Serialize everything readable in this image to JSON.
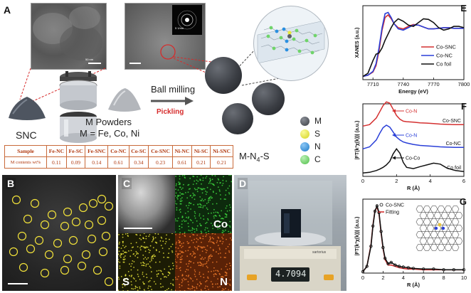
{
  "panel_a": {
    "label": "A",
    "snc_label": "SNC",
    "powders_line1": "M Powders",
    "powders_line2": "M = Fe, Co, Ni",
    "ball_milling": "Ball milling",
    "pickling": "Pickling",
    "product_label": "M-N",
    "product_sub": "4",
    "product_suffix": "-S",
    "scale_left": "50 nm",
    "scale_mid": "5 nm",
    "scale_inset": "5 1/nm",
    "legend": [
      {
        "symbol": "M",
        "color": "#5a5e66"
      },
      {
        "symbol": "S",
        "color": "#e8e83a"
      },
      {
        "symbol": "N",
        "color": "#2a8fe0"
      },
      {
        "symbol": "C",
        "color": "#6fd46a"
      }
    ],
    "table": {
      "header": [
        "Sample",
        "Fe-NC",
        "Fe-SC",
        "Fe-SNC",
        "Co-NC",
        "Co-SC",
        "Co-SNC",
        "Ni-NC",
        "Ni-SC",
        "Ni-SNC"
      ],
      "row_label": "M contents wt%",
      "values": [
        "0.11",
        "0.09",
        "0.14",
        "0.61",
        "0.34",
        "0.23",
        "0.61",
        "0.21",
        "0.21"
      ]
    }
  },
  "panel_b": {
    "label": "B"
  },
  "panel_c": {
    "label": "C",
    "maps": [
      "Co",
      "S",
      "N"
    ]
  },
  "panel_d": {
    "label": "D",
    "scale_brand": "sartorius",
    "display": "4.7094"
  },
  "panel_e": {
    "label": "E",
    "ylabel": "XANES (a.u.)",
    "xlabel": "Energy (eV)",
    "legend": [
      "Co-SNC",
      "Co-NC",
      "Co foil"
    ]
  },
  "panel_f": {
    "label": "F",
    "ylabel": "|FT(k³χ(k))| (a.u.)",
    "xlabel": "R (Å)",
    "annotations": [
      "Co-N",
      "Co-N",
      "Co-Co"
    ],
    "series_labels": [
      "Co-SNC",
      "Co-NC",
      "Co foil"
    ]
  },
  "panel_g": {
    "label": "G",
    "ylabel": "|FT(k³χ(k))| (a.u.)",
    "xlabel": "R (Å)",
    "legend": [
      "Co-SNC",
      "Fitting"
    ]
  },
  "chart_data": [
    {
      "type": "line",
      "panel": "E",
      "xlabel": "Energy (eV)",
      "ylabel": "XANES (a.u.)",
      "xlim": [
        7700,
        7800
      ],
      "xticks": [
        7710,
        7740,
        7770,
        7800
      ],
      "x": [
        7700,
        7705,
        7710,
        7713,
        7716,
        7719,
        7722,
        7725,
        7728,
        7731,
        7735,
        7740,
        7745,
        7750,
        7755,
        7760,
        7765,
        7770,
        7775,
        7780,
        7785,
        7790,
        7795,
        7800
      ],
      "series": [
        {
          "name": "Co-SNC",
          "color": "#d43030",
          "values": [
            0.05,
            0.07,
            0.12,
            0.22,
            0.45,
            0.78,
            0.98,
            1.02,
            0.96,
            0.88,
            0.82,
            0.8,
            0.84,
            0.87,
            0.86,
            0.83,
            0.8,
            0.8,
            0.81,
            0.82,
            0.82,
            0.81,
            0.81,
            0.81
          ]
        },
        {
          "name": "Co-NC",
          "color": "#2a3fd8",
          "values": [
            0.05,
            0.07,
            0.13,
            0.25,
            0.5,
            0.82,
            1.04,
            1.06,
            0.98,
            0.88,
            0.8,
            0.78,
            0.82,
            0.86,
            0.86,
            0.83,
            0.8,
            0.8,
            0.81,
            0.82,
            0.82,
            0.81,
            0.81,
            0.81
          ]
        },
        {
          "name": "Co foil",
          "color": "#111111",
          "values": [
            0.05,
            0.1,
            0.3,
            0.4,
            0.42,
            0.5,
            0.62,
            0.72,
            0.82,
            0.9,
            0.96,
            0.92,
            0.86,
            0.84,
            0.9,
            0.96,
            0.95,
            0.9,
            0.82,
            0.78,
            0.8,
            0.84,
            0.84,
            0.82
          ]
        }
      ]
    },
    {
      "type": "line",
      "panel": "F",
      "xlabel": "R (Å)",
      "ylabel": "|FT(k³χ(k))| (a.u.)",
      "xlim": [
        0,
        6
      ],
      "xticks": [
        0,
        2,
        4,
        6
      ],
      "x": [
        0,
        0.4,
        0.8,
        1.0,
        1.2,
        1.4,
        1.6,
        1.8,
        2.0,
        2.2,
        2.4,
        2.6,
        3.0,
        3.4,
        3.8,
        4.2,
        4.6,
        5.0,
        5.5,
        6.0
      ],
      "series": [
        {
          "name": "Co-SNC",
          "color": "#d43030",
          "values": [
            0.02,
            0.08,
            0.35,
            0.6,
            0.85,
            1.0,
            0.95,
            0.7,
            0.45,
            0.3,
            0.22,
            0.2,
            0.18,
            0.15,
            0.14,
            0.12,
            0.1,
            0.09,
            0.08,
            0.08
          ]
        },
        {
          "name": "Co-NC",
          "color": "#2a3fd8",
          "values": [
            0.02,
            0.1,
            0.38,
            0.65,
            0.88,
            0.98,
            0.9,
            0.7,
            0.5,
            0.38,
            0.3,
            0.26,
            0.2,
            0.16,
            0.14,
            0.12,
            0.1,
            0.09,
            0.08,
            0.08
          ]
        },
        {
          "name": "Co foil",
          "color": "#111111",
          "values": [
            0.02,
            0.05,
            0.12,
            0.18,
            0.25,
            0.35,
            0.5,
            0.8,
            1.0,
            0.82,
            0.45,
            0.25,
            0.2,
            0.28,
            0.35,
            0.42,
            0.38,
            0.22,
            0.12,
            0.08
          ]
        }
      ]
    },
    {
      "type": "line",
      "panel": "G",
      "xlabel": "R (Å)",
      "ylabel": "|FT(k³χ(k))| (a.u.)",
      "xlim": [
        0,
        10
      ],
      "xticks": [
        0,
        2,
        4,
        6,
        8,
        10
      ],
      "x": [
        0,
        0.4,
        0.8,
        1.0,
        1.2,
        1.4,
        1.6,
        1.8,
        2.0,
        2.2,
        2.5,
        2.8,
        3.2,
        3.6,
        4.0,
        4.5,
        5.0,
        6.0,
        7.0,
        8.0,
        9.0,
        10.0
      ],
      "series": [
        {
          "name": "Co-SNC",
          "color": "#111111",
          "values": [
            0.02,
            0.1,
            0.4,
            0.7,
            0.92,
            1.0,
            0.9,
            0.62,
            0.38,
            0.22,
            0.14,
            0.16,
            0.12,
            0.1,
            0.09,
            0.08,
            0.07,
            0.06,
            0.06,
            0.05,
            0.05,
            0.05
          ]
        },
        {
          "name": "Fitting",
          "color": "#d43030",
          "values": [
            0.02,
            0.1,
            0.42,
            0.72,
            0.93,
            0.98,
            0.88,
            0.6,
            0.36,
            0.2,
            0.12,
            0.12,
            0.1,
            0.08,
            0.07,
            0.06,
            0.06,
            0.05,
            0.05,
            0.05,
            0.05,
            0.05
          ]
        }
      ]
    }
  ]
}
